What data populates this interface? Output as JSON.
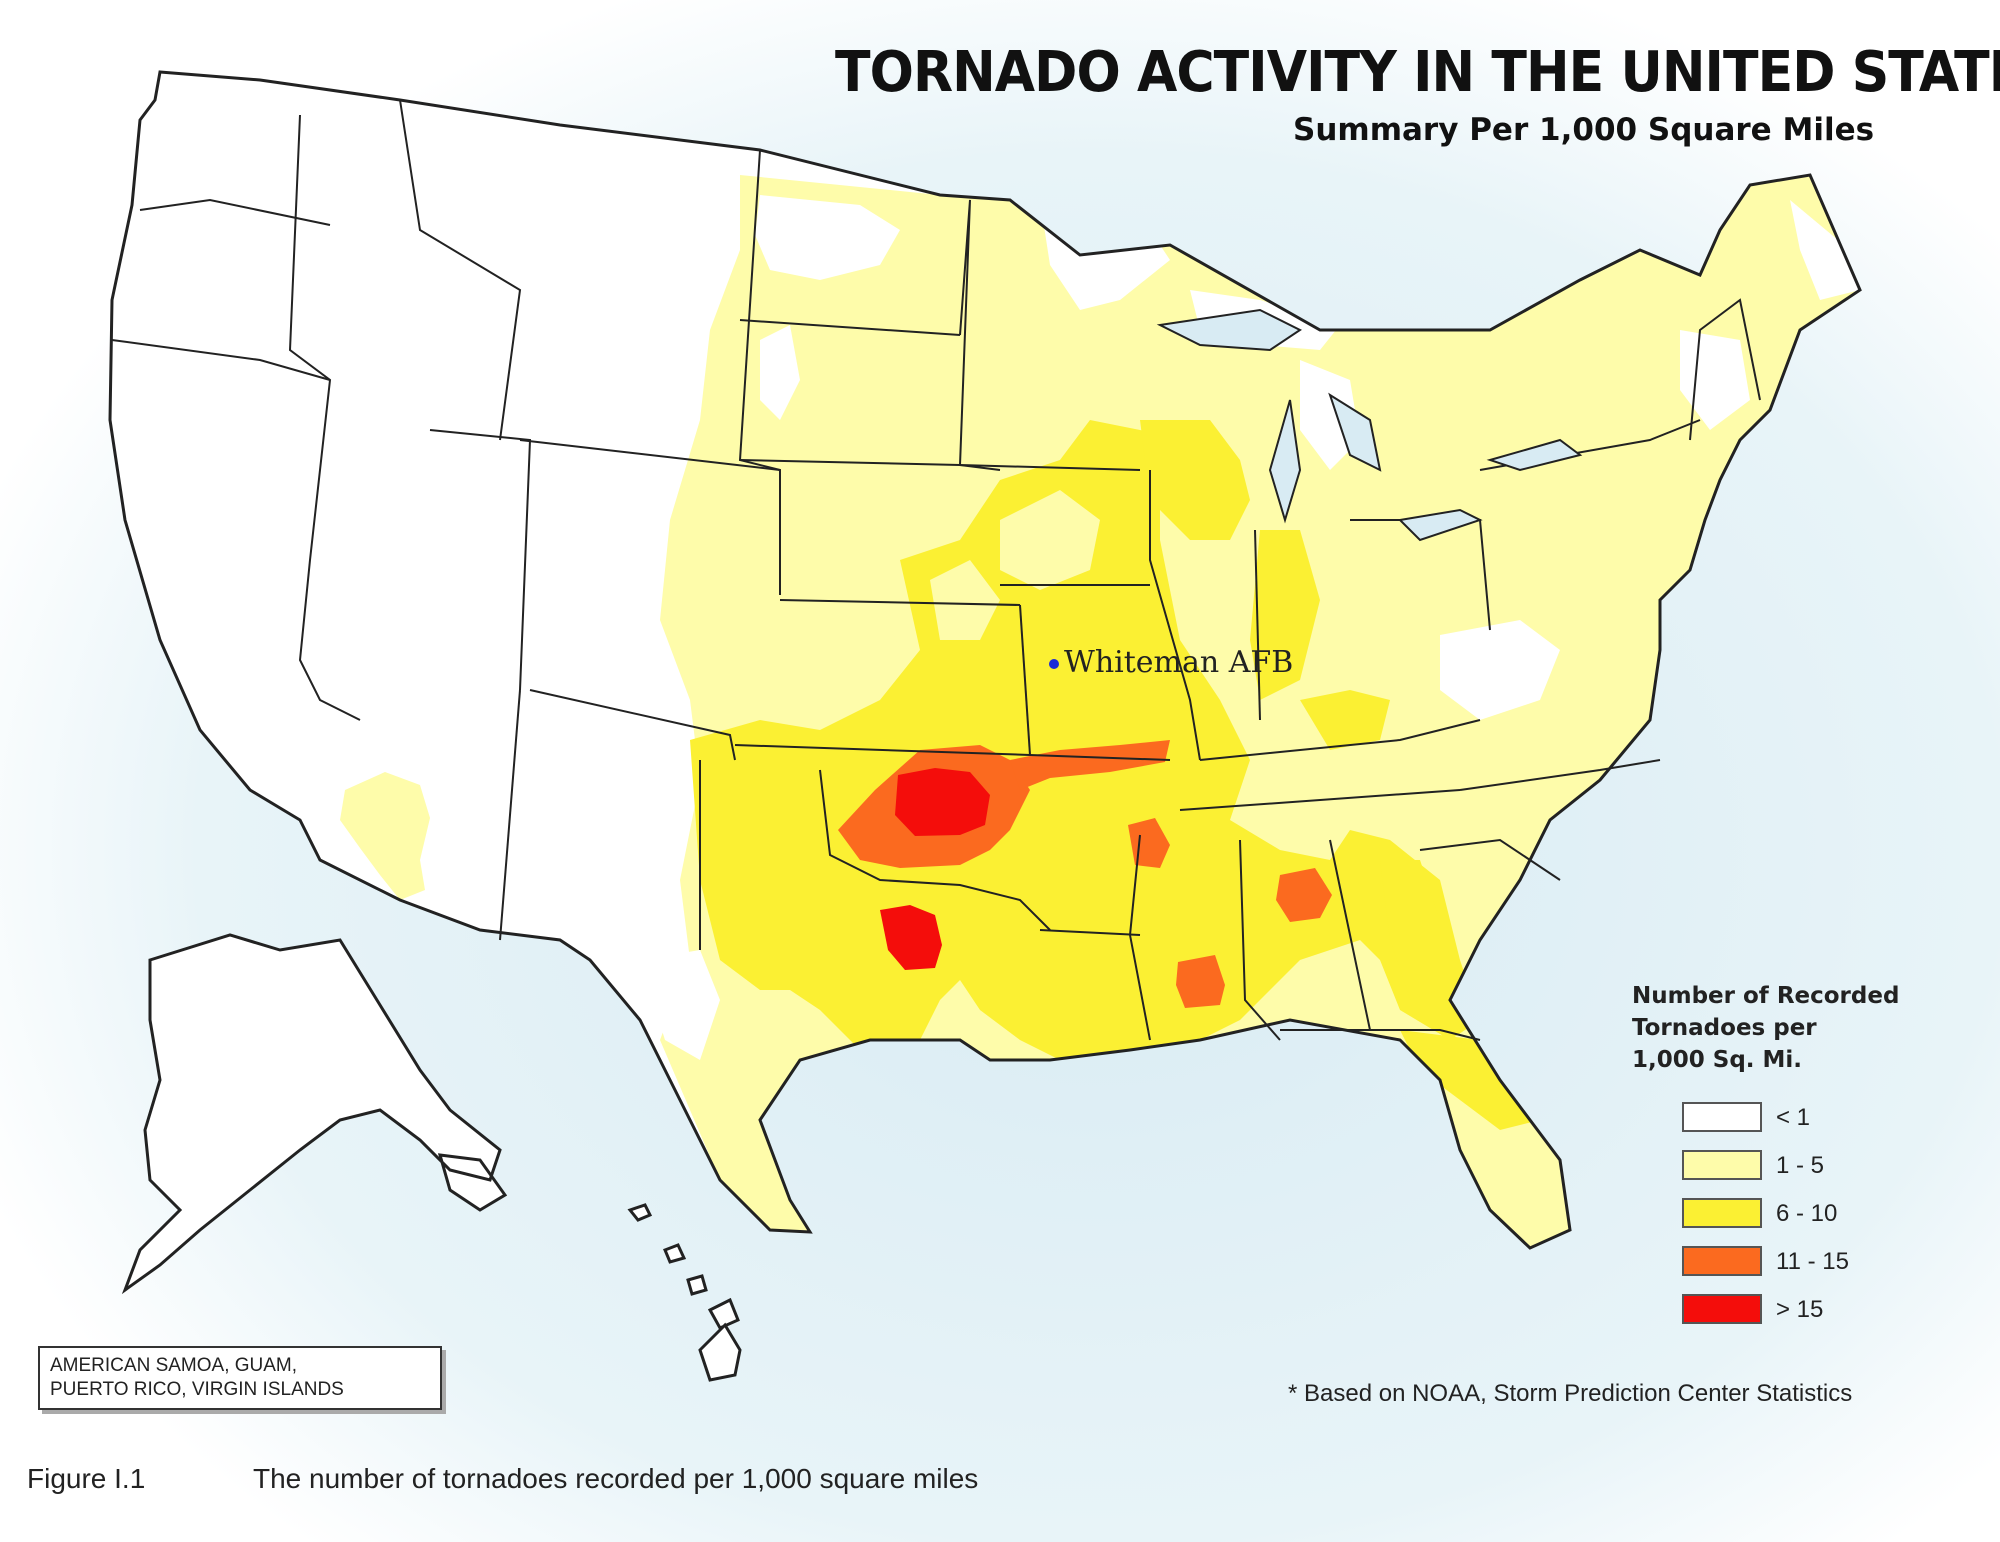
{
  "title": "TORNADO ACTIVITY IN THE UNITED STATES*",
  "subtitle": "Summary Per 1,000 Square Miles",
  "marker": {
    "label": "Whiteman AFB",
    "color": "#1a2ad8"
  },
  "legend": {
    "title_lines": [
      "Number of Recorded",
      "Tornadoes per",
      "1,000 Sq. Mi."
    ],
    "items": [
      {
        "label": "< 1",
        "color": "#ffffff"
      },
      {
        "label": "1 - 5",
        "color": "#fefcaa"
      },
      {
        "label": "6 - 10",
        "color": "#fbf033"
      },
      {
        "label": "11 - 15",
        "color": "#fb6a1f"
      },
      {
        "label": "> 15",
        "color": "#f40d0b"
      }
    ]
  },
  "territories_lines": [
    "AMERICAN SAMOA,  GUAM,",
    "PUERTO RICO, VIRGIN ISLANDS"
  ],
  "footnote": "* Based on NOAA, Storm Prediction Center Statistics",
  "figure": {
    "number": "Figure I.1",
    "caption": "The number of tornadoes recorded per 1,000 square miles"
  },
  "colors": {
    "ocean": "#e3f1f6",
    "border": "#222222"
  }
}
